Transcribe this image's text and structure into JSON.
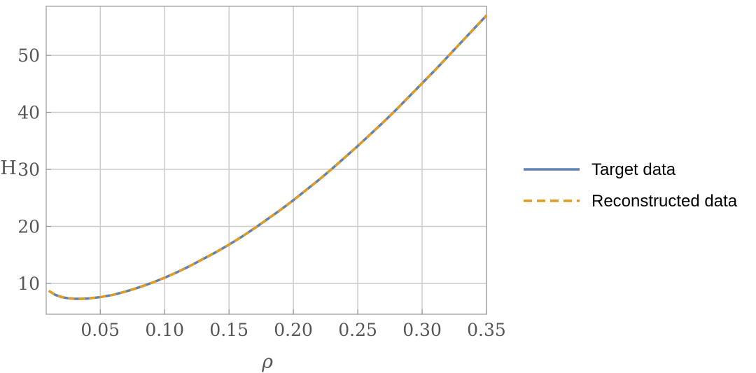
{
  "chart_data": {
    "type": "line",
    "xlabel": "ρ",
    "ylabel": "H",
    "xlim": [
      0.008,
      0.35
    ],
    "ylim": [
      4.6,
      58.6
    ],
    "x_ticks": [
      0.05,
      0.1,
      0.15,
      0.2,
      0.25,
      0.3,
      0.35
    ],
    "x_tick_labels": [
      "0.05",
      "0.10",
      "0.15",
      "0.20",
      "0.25",
      "0.30",
      "0.35"
    ],
    "y_ticks": [
      10,
      20,
      30,
      40,
      50
    ],
    "y_tick_labels": [
      "10",
      "20",
      "30",
      "40",
      "50"
    ],
    "grid": true,
    "legend_position": "right",
    "series": [
      {
        "name": "Target data",
        "color": "#5E81B5",
        "style": "solid",
        "x": [
          0.01,
          0.015,
          0.02,
          0.025,
          0.03,
          0.035,
          0.04,
          0.05,
          0.06,
          0.07,
          0.08,
          0.09,
          0.1,
          0.11,
          0.12,
          0.13,
          0.14,
          0.15,
          0.16,
          0.17,
          0.18,
          0.19,
          0.2,
          0.21,
          0.22,
          0.23,
          0.24,
          0.25,
          0.26,
          0.27,
          0.28,
          0.29,
          0.3,
          0.31,
          0.32,
          0.33,
          0.34,
          0.35
        ],
        "y": [
          8.7,
          8.0,
          7.6,
          7.4,
          7.3,
          7.3,
          7.35,
          7.6,
          8.0,
          8.6,
          9.3,
          10.1,
          11.0,
          12.0,
          13.1,
          14.3,
          15.5,
          16.8,
          18.2,
          19.7,
          21.3,
          22.9,
          24.6,
          26.4,
          28.2,
          30.1,
          32.1,
          34.1,
          36.2,
          38.3,
          40.5,
          42.8,
          45.1,
          47.4,
          49.8,
          52.2,
          54.6,
          57.0
        ]
      },
      {
        "name": "Reconstructed data",
        "color": "#E19C24",
        "style": "dashed",
        "x": [
          0.01,
          0.015,
          0.02,
          0.025,
          0.03,
          0.035,
          0.04,
          0.05,
          0.06,
          0.07,
          0.08,
          0.09,
          0.1,
          0.11,
          0.12,
          0.13,
          0.14,
          0.15,
          0.16,
          0.17,
          0.18,
          0.19,
          0.2,
          0.21,
          0.22,
          0.23,
          0.24,
          0.25,
          0.26,
          0.27,
          0.28,
          0.29,
          0.3,
          0.31,
          0.32,
          0.33,
          0.34,
          0.35
        ],
        "y": [
          8.7,
          8.0,
          7.6,
          7.4,
          7.3,
          7.3,
          7.35,
          7.6,
          8.0,
          8.6,
          9.3,
          10.1,
          11.0,
          12.0,
          13.1,
          14.3,
          15.5,
          16.8,
          18.2,
          19.7,
          21.3,
          22.9,
          24.6,
          26.4,
          28.2,
          30.1,
          32.1,
          34.1,
          36.2,
          38.3,
          40.5,
          42.8,
          45.1,
          47.4,
          49.8,
          52.2,
          54.6,
          57.0
        ]
      }
    ]
  }
}
